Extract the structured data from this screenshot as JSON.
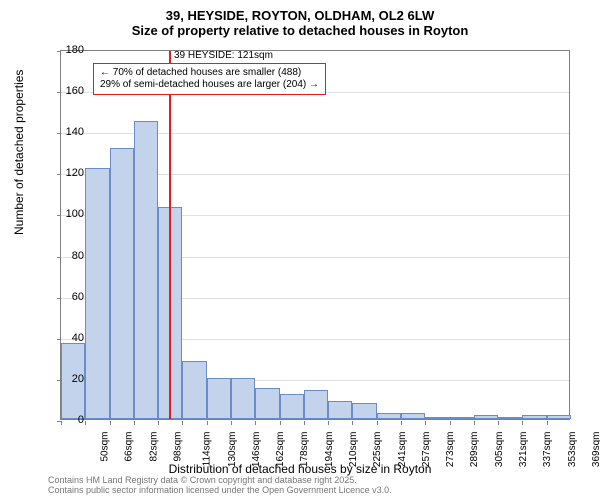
{
  "title": {
    "line1": "39, HEYSIDE, ROYTON, OLDHAM, OL2 6LW",
    "line2": "Size of property relative to detached houses in Royton"
  },
  "axes": {
    "ylabel": "Number of detached properties",
    "xlabel": "Distribution of detached houses by size in Royton",
    "ylim": [
      0,
      180
    ],
    "ytick_step": 20,
    "yticks": [
      0,
      20,
      40,
      60,
      80,
      100,
      120,
      140,
      160,
      180
    ]
  },
  "histogram": {
    "type": "histogram",
    "bar_fill": "#c4d3ec",
    "bar_stroke": "#6a8cc7",
    "background_color": "#ffffff",
    "grid_color": "#e0e0e0",
    "categories": [
      "50sqm",
      "66sqm",
      "82sqm",
      "98sqm",
      "114sqm",
      "130sqm",
      "146sqm",
      "162sqm",
      "178sqm",
      "194sqm",
      "210sqm",
      "225sqm",
      "241sqm",
      "257sqm",
      "273sqm",
      "289sqm",
      "305sqm",
      "321sqm",
      "337sqm",
      "353sqm",
      "369sqm"
    ],
    "values": [
      37,
      122,
      132,
      145,
      103,
      28,
      20,
      20,
      15,
      12,
      14,
      9,
      8,
      3,
      3,
      0,
      0,
      2,
      1,
      2,
      2
    ]
  },
  "marker": {
    "value_sqm": 121,
    "color": "#dd1f1f"
  },
  "annotation": {
    "line1": "← 70% of detached houses are smaller (488)",
    "line2": "29% of semi-detached houses are larger (204) →",
    "title": "39 HEYSIDE: 121sqm",
    "border_color": "#dd1f1f"
  },
  "footer": {
    "line1": "Contains HM Land Registry data © Crown copyright and database right 2025.",
    "line2": "Contains public sector information licensed under the Open Government Licence v3.0."
  }
}
